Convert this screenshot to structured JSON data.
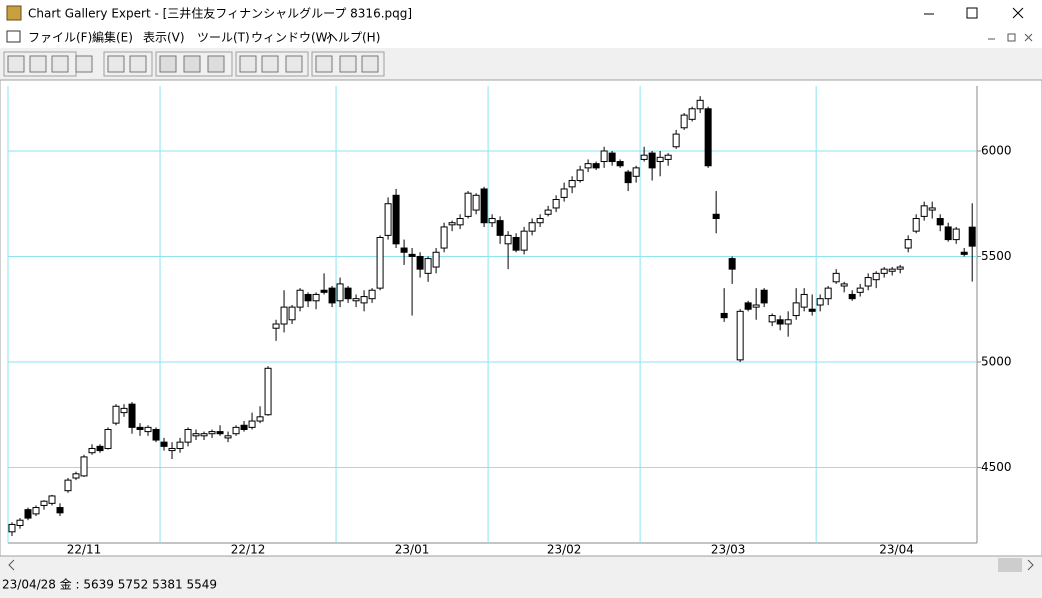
{
  "window": {
    "title": "Chart Gallery Expert - [三井住友フィナンシャルグループ 8316.pqg]"
  },
  "menu": [
    "ファイル(F)",
    "編集(E)",
    "表示(V)",
    "ツール(T)",
    "ウィンドウ(W)",
    "ヘルプ(H)"
  ],
  "status_bar": "23/04/28 金 : 5639 5752 5381 5549",
  "chart_data": {
    "type": "candlestick",
    "grid": true,
    "grid_color": "#8ee3f0",
    "xlim": [
      -0.5,
      120.6
    ],
    "xticks": [
      {
        "value": -0.5,
        "label": "22/11"
      },
      {
        "value": 18.5,
        "label": "22/12"
      },
      {
        "value": 40.5,
        "label": "23/01"
      },
      {
        "value": 59.5,
        "label": "23/02"
      },
      {
        "value": 78.5,
        "label": "23/03"
      },
      {
        "value": 100.5,
        "label": "23/04"
      }
    ],
    "ylim": [
      4142,
      6308
    ],
    "yticks": [
      4500,
      5000,
      5500,
      6000
    ],
    "open": [
      4195,
      4225,
      4300,
      4280,
      4320,
      4330,
      4310,
      4390,
      4450,
      4460,
      4570,
      4600,
      4590,
      4710,
      4760,
      4800,
      4690,
      4670,
      4680,
      4620,
      4580,
      4590,
      4620,
      4650,
      4650,
      4660,
      4670,
      4640,
      4660,
      4700,
      4690,
      4720,
      4750,
      5160,
      5180,
      5200,
      5260,
      5320,
      5290,
      5340,
      5350,
      5290,
      5350,
      5290,
      5280,
      5300,
      5350,
      5600,
      5790,
      5540,
      5510,
      5500,
      5420,
      5450,
      5540,
      5650,
      5650,
      5690,
      5720,
      5820,
      5660,
      5670,
      5560,
      5590,
      5530,
      5620,
      5660,
      5700,
      5730,
      5780,
      5830,
      5860,
      5920,
      5940,
      5950,
      5990,
      5950,
      5900,
      5880,
      5960,
      5990,
      5950,
      5960,
      6020,
      6110,
      6150,
      6200,
      6200,
      5700,
      5230,
      5490,
      5010,
      5280,
      5260,
      5340,
      5190,
      5200,
      5180,
      5220,
      5260,
      5250,
      5270,
      5300,
      5380,
      5360,
      5320,
      5330,
      5360,
      5390,
      5420,
      5430,
      5440,
      5540,
      5620,
      5690,
      5720,
      5680,
      5640,
      5580,
      5520,
      5639
    ],
    "high": [
      4240,
      4260,
      4310,
      4320,
      4345,
      4370,
      4330,
      4450,
      4480,
      4560,
      4610,
      4610,
      4690,
      4800,
      4800,
      4810,
      4710,
      4700,
      4690,
      4640,
      4620,
      4640,
      4690,
      4680,
      4670,
      4680,
      4700,
      4670,
      4700,
      4720,
      4760,
      4790,
      4980,
      5200,
      5340,
      5270,
      5350,
      5330,
      5330,
      5420,
      5360,
      5400,
      5360,
      5320,
      5340,
      5350,
      5600,
      5780,
      5820,
      5580,
      5540,
      5520,
      5500,
      5540,
      5660,
      5670,
      5700,
      5810,
      5800,
      5830,
      5700,
      5690,
      5620,
      5610,
      5640,
      5680,
      5700,
      5740,
      5790,
      5850,
      5880,
      5930,
      5960,
      5950,
      6020,
      6000,
      5960,
      5910,
      5930,
      6020,
      6000,
      6000,
      5990,
      6100,
      6180,
      6210,
      6260,
      6210,
      5810,
      5350,
      5500,
      5250,
      5290,
      5350,
      5350,
      5230,
      5220,
      5240,
      5350,
      5350,
      5320,
      5320,
      5360,
      5440,
      5380,
      5340,
      5370,
      5420,
      5430,
      5450,
      5450,
      5460,
      5600,
      5700,
      5760,
      5760,
      5700,
      5660,
      5640,
      5540,
      5752
    ],
    "low": [
      4175,
      4210,
      4250,
      4270,
      4300,
      4320,
      4270,
      4380,
      4440,
      4455,
      4560,
      4570,
      4585,
      4700,
      4740,
      4660,
      4650,
      4650,
      4620,
      4580,
      4540,
      4570,
      4600,
      4630,
      4630,
      4640,
      4650,
      4620,
      4650,
      4670,
      4680,
      4710,
      4745,
      5100,
      5140,
      5180,
      5240,
      5260,
      5250,
      5320,
      5260,
      5260,
      5280,
      5260,
      5240,
      5280,
      5340,
      5580,
      5540,
      5460,
      5220,
      5400,
      5380,
      5420,
      5520,
      5620,
      5630,
      5680,
      5700,
      5640,
      5640,
      5560,
      5440,
      5520,
      5510,
      5600,
      5640,
      5690,
      5710,
      5760,
      5800,
      5850,
      5900,
      5910,
      5920,
      5930,
      5920,
      5810,
      5850,
      5950,
      5860,
      5880,
      5930,
      6010,
      6100,
      6140,
      6180,
      5920,
      5610,
      5190,
      5370,
      5000,
      5240,
      5200,
      5260,
      5170,
      5150,
      5120,
      5200,
      5240,
      5220,
      5240,
      5270,
      5370,
      5330,
      5290,
      5310,
      5340,
      5350,
      5400,
      5410,
      5420,
      5520,
      5610,
      5670,
      5680,
      5620,
      5570,
      5560,
      5500,
      5381
    ],
    "close": [
      4230,
      4250,
      4260,
      4310,
      4340,
      4365,
      4285,
      4440,
      4470,
      4550,
      4590,
      4580,
      4680,
      4790,
      4780,
      4690,
      4680,
      4690,
      4630,
      4600,
      4590,
      4620,
      4680,
      4660,
      4660,
      4670,
      4660,
      4650,
      4690,
      4680,
      4720,
      4740,
      4970,
      5180,
      5260,
      5260,
      5340,
      5290,
      5320,
      5330,
      5280,
      5370,
      5300,
      5300,
      5310,
      5340,
      5590,
      5750,
      5560,
      5520,
      5500,
      5440,
      5490,
      5520,
      5640,
      5660,
      5680,
      5800,
      5790,
      5660,
      5680,
      5600,
      5600,
      5530,
      5620,
      5660,
      5680,
      5720,
      5770,
      5820,
      5860,
      5910,
      5940,
      5920,
      6000,
      5950,
      5930,
      5850,
      5920,
      5980,
      5920,
      5970,
      5980,
      6080,
      6170,
      6200,
      6240,
      5930,
      5680,
      5210,
      5440,
      5240,
      5250,
      5270,
      5280,
      5220,
      5180,
      5200,
      5280,
      5320,
      5240,
      5300,
      5350,
      5420,
      5370,
      5300,
      5350,
      5400,
      5420,
      5440,
      5440,
      5450,
      5580,
      5680,
      5740,
      5730,
      5650,
      5580,
      5630,
      5510,
      5549
    ]
  }
}
